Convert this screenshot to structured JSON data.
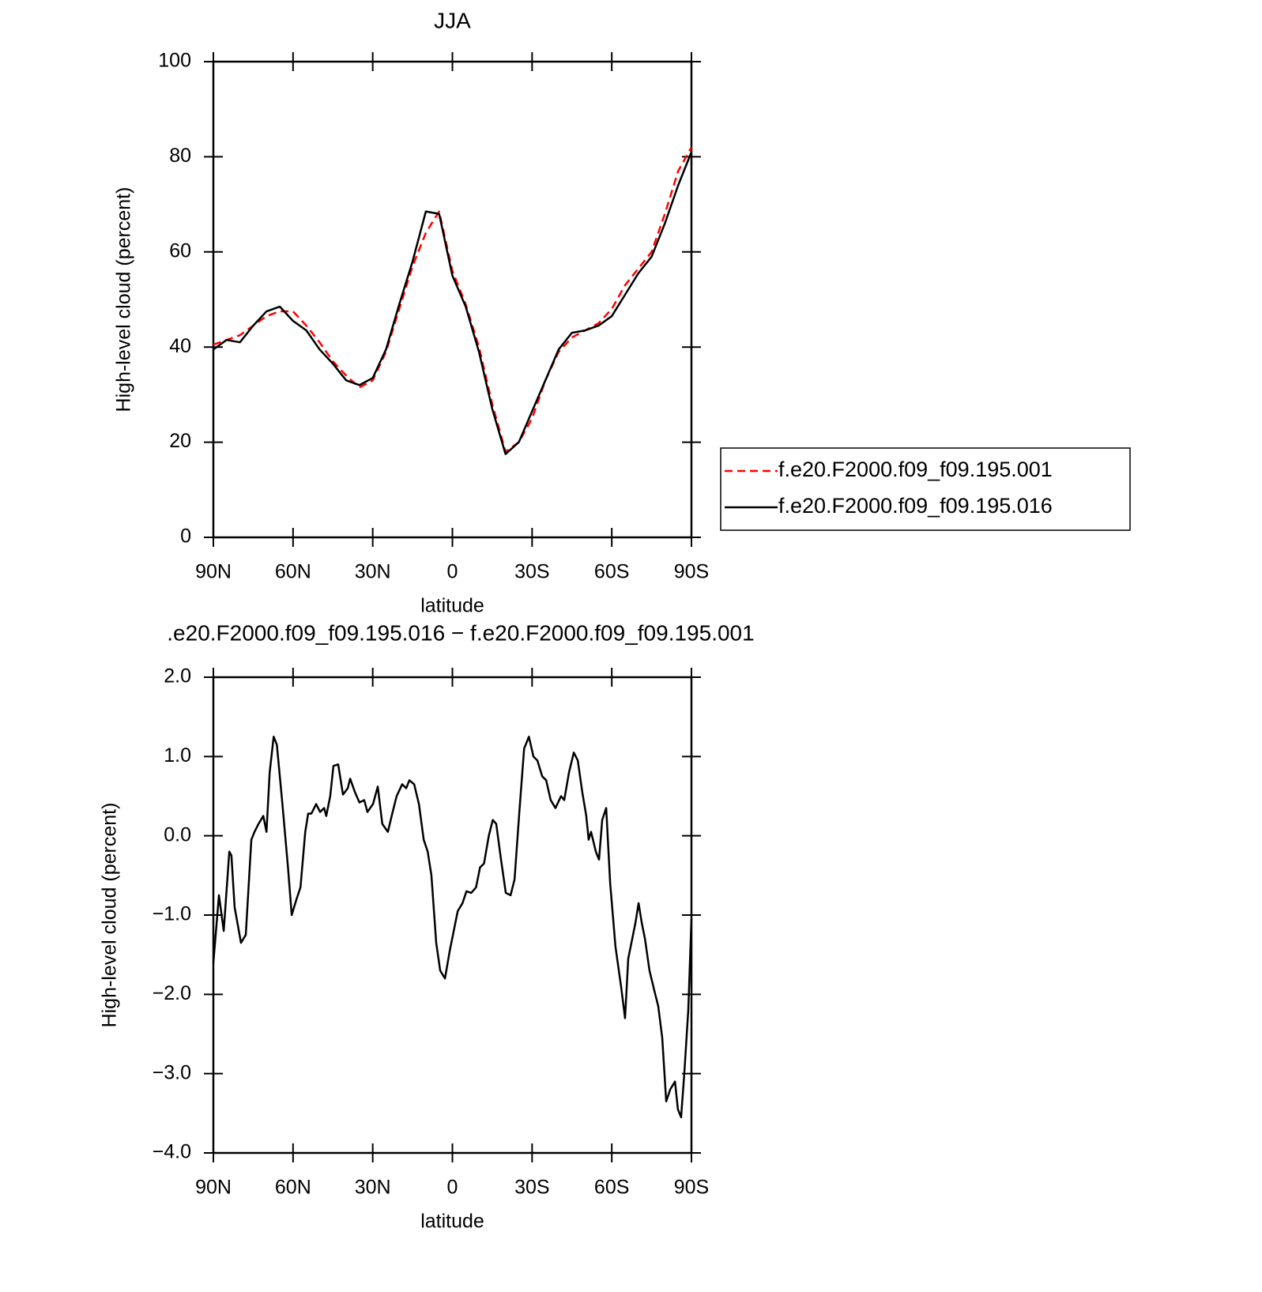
{
  "chart_data": [
    {
      "type": "line",
      "title": "JJA",
      "xlabel": "latitude",
      "ylabel": "High-level cloud (percent)",
      "x": [
        90,
        85,
        80,
        75,
        70,
        65,
        60,
        55,
        50,
        45,
        40,
        35,
        30,
        25,
        20,
        15,
        10,
        5,
        0,
        -5,
        -10,
        -15,
        -20,
        -25,
        -30,
        -35,
        -40,
        -45,
        -50,
        -55,
        -60,
        -65,
        -70,
        -75,
        -80,
        -85,
        -90
      ],
      "series": [
        {
          "name": "f.e20.F2000.f09_f09.195.001",
          "color": "#ff0000",
          "style": "dashed",
          "values": [
            40.5,
            41.5,
            42.5,
            44.5,
            46.5,
            47.5,
            47.5,
            44.5,
            41,
            37,
            34,
            31.5,
            33,
            39,
            48,
            57,
            64,
            68.5,
            56,
            49,
            40,
            28,
            18,
            20,
            25,
            33,
            39,
            42,
            43.5,
            45,
            48,
            53,
            56.5,
            60,
            68,
            77,
            82
          ]
        },
        {
          "name": "f.e20.F2000.f09_f09.195.016",
          "color": "#000000",
          "style": "solid",
          "values": [
            39.5,
            41.5,
            41,
            44.5,
            47.5,
            48.5,
            45.5,
            43.5,
            39.5,
            36.5,
            33,
            32,
            33.5,
            39.5,
            49,
            58,
            68.5,
            68,
            55,
            48.5,
            39,
            27,
            17.5,
            20,
            26.5,
            33,
            39.5,
            43,
            43.5,
            44.5,
            46.5,
            51,
            55.5,
            59,
            66,
            74,
            81
          ]
        }
      ],
      "xlim": [
        90,
        -90
      ],
      "xticks": [
        {
          "value": 90,
          "label": "90N"
        },
        {
          "value": 60,
          "label": "60N"
        },
        {
          "value": 30,
          "label": "30N"
        },
        0,
        {
          "value": -30,
          "label": "30S"
        },
        {
          "value": -60,
          "label": "60S"
        },
        {
          "value": -90,
          "label": "90S"
        }
      ],
      "ylim": [
        0,
        100
      ],
      "yticks": [
        0,
        20,
        40,
        60,
        80,
        100
      ],
      "legend": "right"
    },
    {
      "type": "line",
      "title": ".e20.F2000.f09_f09.195.016 − f.e20.F2000.f09_f09.195.001",
      "xlabel": "latitude",
      "ylabel": "High-level cloud (percent)",
      "x": [
        90,
        87.9,
        86.1,
        84.0,
        83.2,
        82.0,
        79.6,
        77.8,
        75.7,
        74.5,
        73.0,
        71.2,
        70.0,
        68.8,
        67.3,
        66.1,
        64.0,
        61.9,
        60.5,
        58.7,
        57.2,
        55.4,
        54.3,
        53.1,
        51.3,
        49.8,
        48.3,
        47.5,
        46.0,
        44.8,
        43.0,
        41.2,
        39.4,
        38.5,
        36.7,
        35.0,
        33.2,
        32.0,
        29.9,
        28.1,
        26.4,
        24.3,
        22.5,
        21.0,
        18.9,
        17.4,
        16.2,
        14.4,
        12.6,
        10.8,
        9.3,
        7.9,
        6.1,
        4.6,
        2.8,
        1.0,
        -0.5,
        -2.0,
        -3.8,
        -5.3,
        -7.1,
        -8.9,
        -10.4,
        -11.9,
        -13.7,
        -15.2,
        -16.5,
        -18.3,
        -20.1,
        -21.9,
        -23.4,
        -25.2,
        -27.0,
        -28.8,
        -30.5,
        -32.0,
        -33.8,
        -35.3,
        -37.0,
        -38.8,
        -40.9,
        -42.1,
        -43.9,
        -45.7,
        -47.2,
        -48.9,
        -50.4,
        -51.3,
        -52.2,
        -54.0,
        -55.2,
        -56.4,
        -57.9,
        -59.4,
        -61.4,
        -63.5,
        -65.0,
        -66.2,
        -67.7,
        -68.9,
        -70.1,
        -71.3,
        -72.5,
        -74.2,
        -76.0,
        -77.5,
        -79.0,
        -80.5,
        -82.0,
        -83.8,
        -84.9,
        -86.1,
        -87.3,
        -88.8,
        -90
      ],
      "series": [
        {
          "color": "#000000",
          "style": "solid",
          "values": [
            -1.6,
            -0.75,
            -1.2,
            -0.2,
            -0.25,
            -0.9,
            -1.35,
            -1.25,
            -0.05,
            0.05,
            0.15,
            0.25,
            0.05,
            0.8,
            1.25,
            1.15,
            0.4,
            -0.4,
            -1.0,
            -0.8,
            -0.65,
            0.05,
            0.28,
            0.28,
            0.4,
            0.3,
            0.35,
            0.25,
            0.5,
            0.88,
            0.9,
            0.52,
            0.6,
            0.72,
            0.55,
            0.42,
            0.45,
            0.3,
            0.4,
            0.62,
            0.15,
            0.05,
            0.3,
            0.5,
            0.65,
            0.6,
            0.7,
            0.65,
            0.4,
            -0.05,
            -0.2,
            -0.5,
            -1.35,
            -1.7,
            -1.8,
            -1.45,
            -1.2,
            -0.95,
            -0.85,
            -0.7,
            -0.72,
            -0.65,
            -0.4,
            -0.35,
            0.0,
            0.2,
            0.15,
            -0.3,
            -0.72,
            -0.75,
            -0.55,
            0.3,
            1.1,
            1.25,
            1.0,
            0.95,
            0.75,
            0.7,
            0.45,
            0.35,
            0.5,
            0.45,
            0.8,
            1.05,
            0.95,
            0.55,
            0.25,
            -0.05,
            0.05,
            -0.2,
            -0.3,
            0.2,
            0.35,
            -0.6,
            -1.4,
            -1.9,
            -2.3,
            -1.55,
            -1.3,
            -1.1,
            -0.85,
            -1.1,
            -1.3,
            -1.7,
            -1.95,
            -2.15,
            -2.55,
            -3.35,
            -3.2,
            -3.1,
            -3.45,
            -3.55,
            -3.0,
            -2.2,
            -1.05
          ]
        }
      ],
      "xlim": [
        90,
        -90
      ],
      "xticks": [
        {
          "value": 90,
          "label": "90N"
        },
        {
          "value": 60,
          "label": "60N"
        },
        {
          "value": 30,
          "label": "30N"
        },
        0,
        {
          "value": -30,
          "label": "30S"
        },
        {
          "value": -60,
          "label": "60S"
        },
        {
          "value": -90,
          "label": "90S"
        }
      ],
      "ylim": [
        -4,
        2
      ],
      "yticks": [
        {
          "value": -4,
          "label": "−4.0"
        },
        {
          "value": -3,
          "label": "−3.0"
        },
        {
          "value": -2,
          "label": "−2.0"
        },
        {
          "value": -1,
          "label": "−1.0"
        },
        {
          "value": 0,
          "label": "0.0"
        },
        {
          "value": 1,
          "label": "1.0"
        },
        {
          "value": 2,
          "label": "2.0"
        }
      ]
    }
  ]
}
